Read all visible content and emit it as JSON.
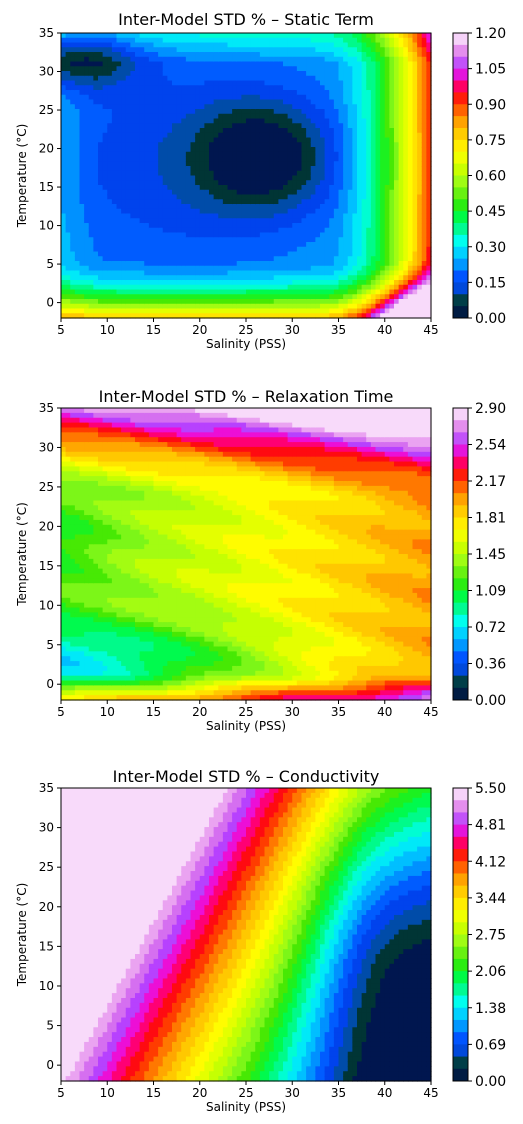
{
  "chart_data": [
    {
      "type": "heatmap",
      "title": "Inter-Model STD % – Static Term",
      "xlabel": "Salinity (PSS)",
      "ylabel": "Temperature (°C)",
      "xlim": [
        5,
        45
      ],
      "ylim": [
        -2,
        35
      ],
      "x_ticks": [
        5,
        10,
        15,
        20,
        25,
        30,
        35,
        40,
        45
      ],
      "y_ticks": [
        0,
        5,
        10,
        15,
        20,
        25,
        30,
        35
      ],
      "colorbar_ticks": [
        "0.00",
        "0.15",
        "0.30",
        "0.45",
        "0.60",
        "0.75",
        "0.90",
        "1.05",
        "1.20"
      ],
      "colorbar_range": [
        0,
        1.2
      ],
      "colormap": "gist_ncar",
      "field": {
        "base": 0.25,
        "terms": [
          {
            "kind": "gauss",
            "s": 6,
            "t": 32,
            "amp": -0.22,
            "ws": 5,
            "wt": 3
          },
          {
            "kind": "gauss",
            "s": 27,
            "t": 19,
            "amp": -0.2,
            "ws": 5,
            "wt": 5
          },
          {
            "kind": "gauss",
            "s": 18,
            "t": 18,
            "amp": -0.12,
            "ws": 12,
            "wt": 11
          },
          {
            "kind": "ramp_s",
            "from": 33,
            "to": 45,
            "amp": 0.7,
            "pow": 2
          },
          {
            "kind": "ramp_t_low",
            "from": 6,
            "to": -2,
            "amp": 0.55,
            "pow": 2
          },
          {
            "kind": "ramp_t_high",
            "from": 31,
            "to": 35,
            "amp": 0.12,
            "pow": 1
          },
          {
            "kind": "corner",
            "s": 45,
            "t": -2,
            "amp": 0.45,
            "ws": 4,
            "wt": 3
          },
          {
            "kind": "ramp_s_low",
            "from": 9,
            "to": 5,
            "amp": 0.05,
            "pow": 1
          }
        ]
      }
    },
    {
      "type": "heatmap",
      "title": "Inter-Model STD % – Relaxation Time",
      "xlabel": "Salinity (PSS)",
      "ylabel": "Temperature (°C)",
      "xlim": [
        5,
        45
      ],
      "ylim": [
        -2,
        35
      ],
      "x_ticks": [
        5,
        10,
        15,
        20,
        25,
        30,
        35,
        40,
        45
      ],
      "y_ticks": [
        0,
        5,
        10,
        15,
        20,
        25,
        30,
        35
      ],
      "colorbar_ticks": [
        "0.00",
        "0.36",
        "0.72",
        "1.09",
        "1.45",
        "1.81",
        "2.17",
        "2.54",
        "2.90"
      ],
      "colorbar_range": [
        0,
        2.9
      ],
      "colormap": "gist_ncar",
      "field": {
        "base": 1.25,
        "terms": [
          {
            "kind": "gauss",
            "s": 8,
            "t": 3,
            "amp": -0.55,
            "ws": 15,
            "wt": 3.5
          },
          {
            "kind": "gauss",
            "s": 5,
            "t": 18,
            "amp": -0.15,
            "ws": 4,
            "wt": 3
          },
          {
            "kind": "lin_s",
            "from": 5,
            "to": 45,
            "amp": 0.75
          },
          {
            "kind": "ramp_t_high",
            "from": 24,
            "to": 35,
            "amp": 1.4,
            "pow": 1.3
          },
          {
            "kind": "ramp_t_low",
            "from": 1,
            "to": -2,
            "amp": 0.7,
            "pow": 1
          },
          {
            "kind": "wave_t",
            "amp": 0.07,
            "period": 6
          }
        ]
      }
    },
    {
      "type": "heatmap",
      "title": "Inter-Model STD % – Conductivity",
      "xlabel": "Salinity (PSS)",
      "ylabel": "Temperature (°C)",
      "xlim": [
        5,
        45
      ],
      "ylim": [
        -2,
        35
      ],
      "x_ticks": [
        5,
        10,
        15,
        20,
        25,
        30,
        35,
        40,
        45
      ],
      "y_ticks": [
        0,
        5,
        10,
        15,
        20,
        25,
        30,
        35
      ],
      "colorbar_ticks": [
        "0.00",
        "0.69",
        "1.38",
        "2.06",
        "2.75",
        "3.44",
        "4.12",
        "4.81",
        "5.50"
      ],
      "colorbar_range": [
        0,
        5.5
      ],
      "colormap": "gist_ncar",
      "field": {
        "base": 0,
        "terms": [
          {
            "kind": "cond"
          }
        ]
      }
    }
  ]
}
